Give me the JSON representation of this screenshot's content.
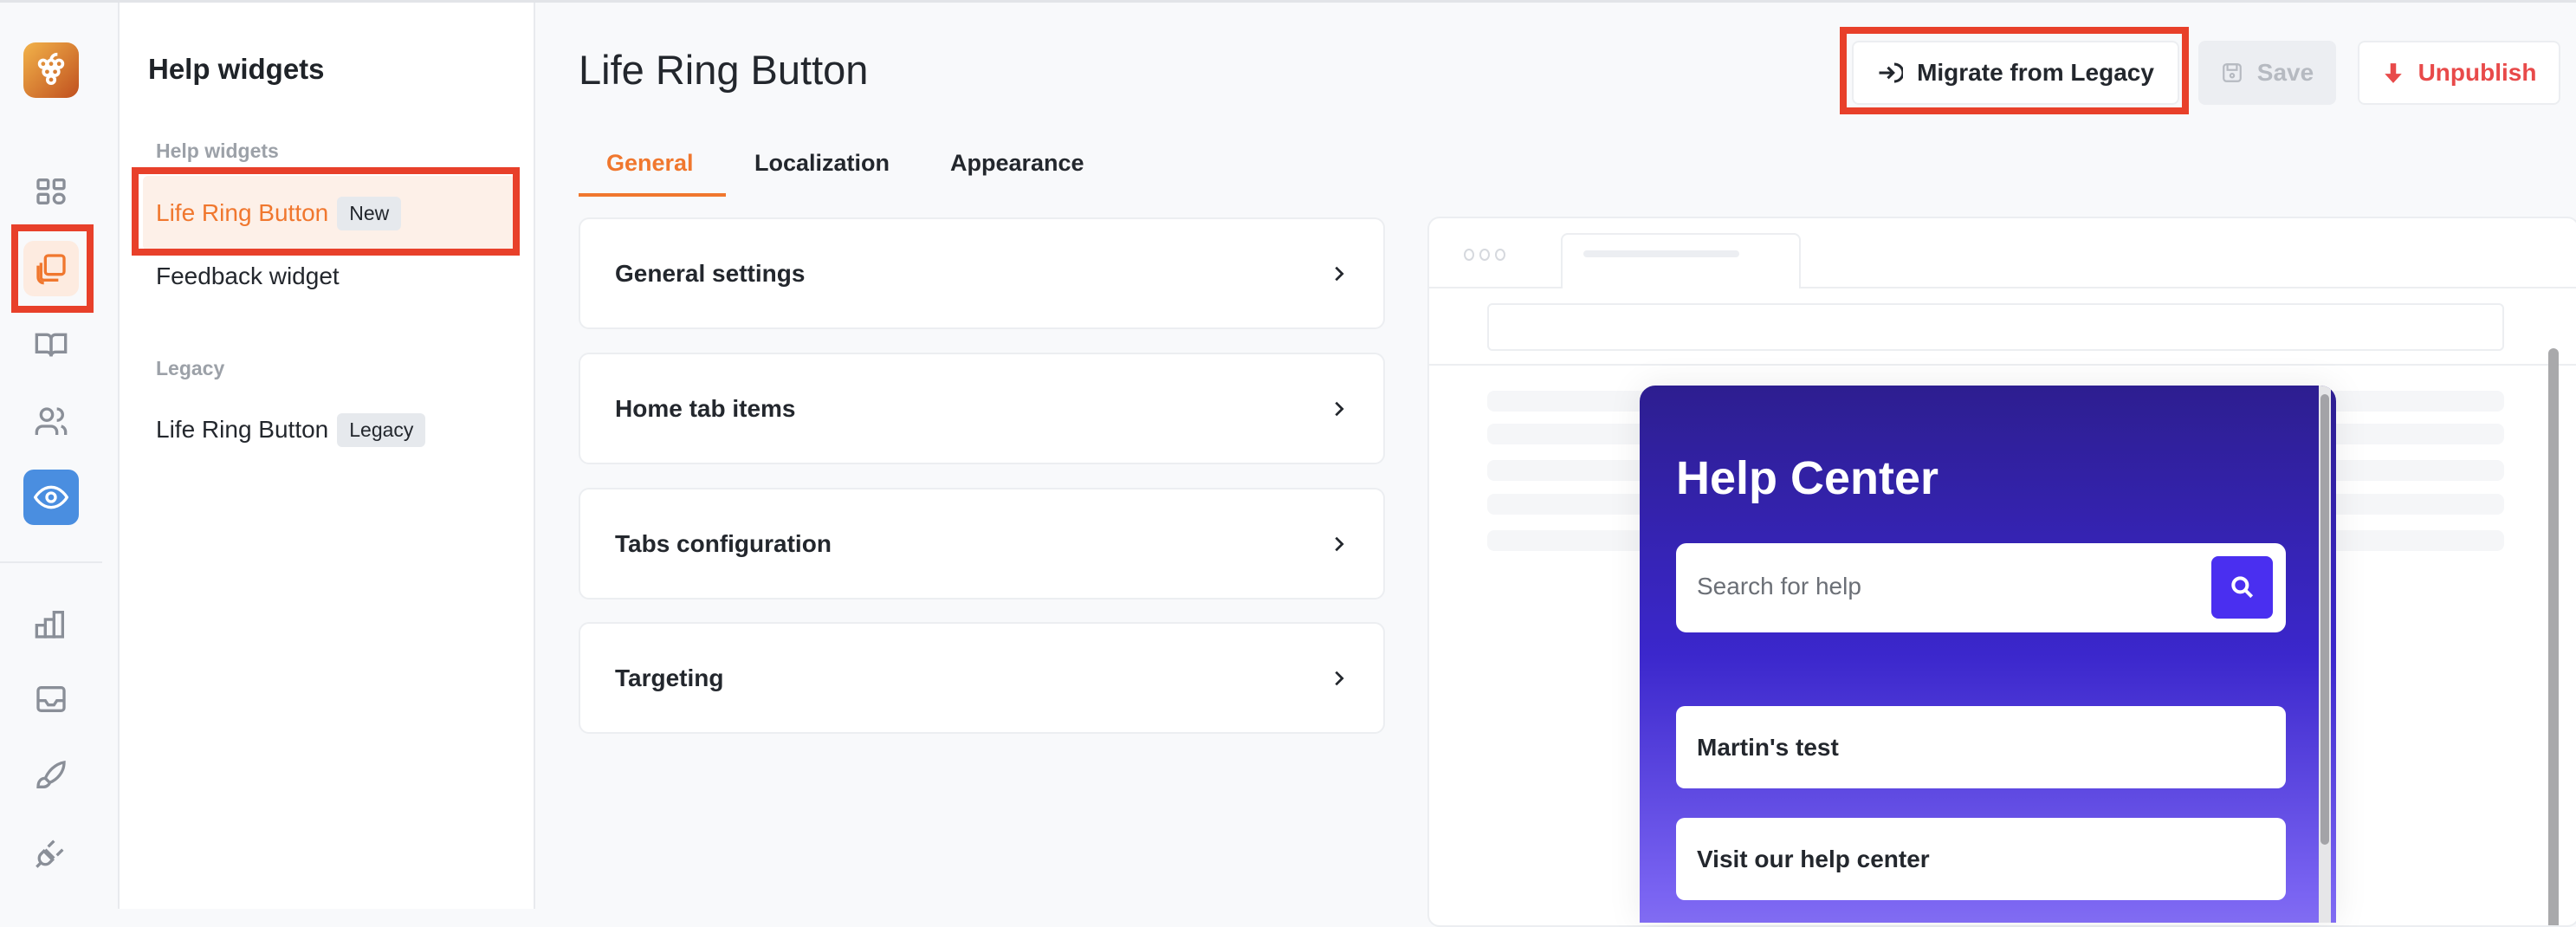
{
  "sidebar": {
    "icons": [
      "grape-logo-icon",
      "dashboard-grid-icon",
      "widgets-copy-icon",
      "book-icon",
      "users-icon",
      "eye-icon",
      "chart-icon",
      "inbox-icon",
      "brush-icon",
      "plug-icon"
    ]
  },
  "panel": {
    "title": "Help widgets",
    "section_help": "Help widgets",
    "section_legacy": "Legacy",
    "items": [
      {
        "label": "Life Ring Button",
        "badge": "New"
      },
      {
        "label": "Feedback widget"
      },
      {
        "label": "Life Ring Button",
        "badge": "Legacy"
      }
    ]
  },
  "main": {
    "title": "Life Ring Button",
    "migrate_label": "Migrate from Legacy",
    "save_label": "Save",
    "unpublish_label": "Unpublish",
    "tabs": [
      {
        "label": "General"
      },
      {
        "label": "Localization"
      },
      {
        "label": "Appearance"
      }
    ],
    "cards": [
      {
        "label": "General settings"
      },
      {
        "label": "Home tab items"
      },
      {
        "label": "Tabs configuration"
      },
      {
        "label": "Targeting"
      }
    ]
  },
  "preview": {
    "title": "Help Center",
    "search_placeholder": "Search for help",
    "items": [
      "Martin's test",
      "Visit our help center"
    ]
  },
  "colors": {
    "accent": "#f0772e",
    "highlight": "#e8402a",
    "widget": "#3b27cc",
    "danger": "#e84a4a"
  }
}
